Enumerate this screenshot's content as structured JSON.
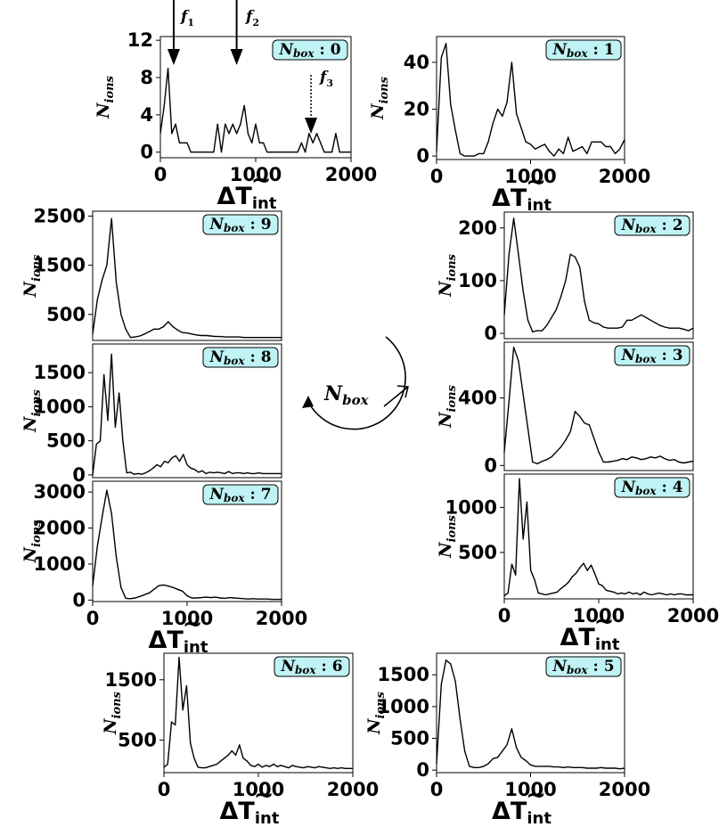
{
  "figure": {
    "y_label": "N",
    "y_label_sub": "ions",
    "x_label_main": "ΔT",
    "x_label_sub": "int",
    "x_label_tilde": "~",
    "cycle_label": "N",
    "cycle_label_sub": "box",
    "badge_color": "#bff3f5"
  },
  "arrows": {
    "f1": {
      "label": "f",
      "sub": "1",
      "x": 140
    },
    "f2": {
      "label": "f",
      "sub": "2",
      "x": 800
    },
    "f3": {
      "label": "f",
      "sub": "3",
      "x": 1580
    }
  },
  "chart_data": [
    {
      "id": "box0",
      "type": "line",
      "badge": "N",
      "badge_sub": "box",
      "badge_value": ": 0",
      "xlim": [
        0,
        2000
      ],
      "ylim": [
        -0.6,
        12.4
      ],
      "xticks": [
        0,
        1000,
        2000
      ],
      "yticks": [
        0,
        4,
        8,
        12
      ],
      "show_xlabel": true,
      "x": [
        0,
        40,
        80,
        120,
        160,
        200,
        240,
        280,
        320,
        360,
        400,
        440,
        480,
        520,
        560,
        600,
        640,
        680,
        720,
        760,
        800,
        840,
        880,
        920,
        960,
        1000,
        1040,
        1080,
        1120,
        1160,
        1200,
        1240,
        1280,
        1320,
        1360,
        1400,
        1440,
        1480,
        1520,
        1560,
        1600,
        1640,
        1680,
        1720,
        1760,
        1800,
        1840,
        1880,
        1920,
        1960,
        2000
      ],
      "y": [
        2,
        5,
        9,
        2,
        3,
        1,
        1,
        1,
        0,
        0,
        0,
        0,
        0,
        0,
        0,
        3,
        0,
        3,
        2,
        3,
        2,
        3,
        5,
        2,
        1,
        3,
        1,
        1,
        0,
        0,
        0,
        0,
        0,
        0,
        0,
        0,
        0,
        1,
        0,
        2,
        1,
        2,
        1,
        0,
        0,
        0,
        2,
        0,
        0,
        0,
        0
      ]
    },
    {
      "id": "box1",
      "type": "line",
      "badge": "N",
      "badge_sub": "box",
      "badge_value": ": 1",
      "xlim": [
        0,
        2000
      ],
      "ylim": [
        -1.5,
        51
      ],
      "xticks": [
        0,
        1000,
        2000
      ],
      "yticks": [
        0,
        20,
        40
      ],
      "show_xlabel": true,
      "x": [
        0,
        50,
        100,
        150,
        200,
        250,
        300,
        350,
        400,
        450,
        500,
        550,
        600,
        650,
        700,
        750,
        800,
        850,
        900,
        950,
        1000,
        1050,
        1100,
        1150,
        1200,
        1250,
        1300,
        1350,
        1400,
        1450,
        1500,
        1550,
        1600,
        1650,
        1700,
        1750,
        1800,
        1850,
        1900,
        1950,
        2000
      ],
      "y": [
        2,
        42,
        48,
        22,
        11,
        1,
        0,
        0,
        0,
        1,
        1,
        6,
        14,
        20,
        17,
        23,
        40,
        18,
        12,
        6,
        5,
        3,
        4,
        5,
        2,
        0,
        3,
        1,
        8,
        2,
        3,
        4,
        1,
        6,
        6,
        6,
        4,
        4,
        1,
        3,
        7
      ]
    },
    {
      "id": "box2",
      "type": "line",
      "badge": "N",
      "badge_sub": "box",
      "badge_value": ": 2",
      "xlim": [
        0,
        2000
      ],
      "ylim": [
        -10,
        230
      ],
      "xticks": [],
      "yticks": [
        0,
        100,
        200
      ],
      "show_xlabel": false,
      "x": [
        0,
        50,
        100,
        150,
        200,
        250,
        300,
        350,
        400,
        450,
        500,
        550,
        600,
        650,
        700,
        750,
        800,
        850,
        900,
        950,
        1000,
        1050,
        1100,
        1150,
        1200,
        1250,
        1300,
        1350,
        1400,
        1450,
        1500,
        1550,
        1600,
        1650,
        1700,
        1750,
        1800,
        1850,
        1900,
        1950,
        2000
      ],
      "y": [
        35,
        150,
        218,
        150,
        80,
        25,
        3,
        5,
        5,
        15,
        30,
        45,
        70,
        100,
        150,
        145,
        125,
        60,
        25,
        20,
        18,
        12,
        10,
        10,
        10,
        12,
        25,
        25,
        30,
        35,
        30,
        25,
        20,
        15,
        12,
        10,
        10,
        10,
        8,
        5,
        10
      ]
    },
    {
      "id": "box3",
      "type": "line",
      "badge": "N",
      "badge_sub": "box",
      "badge_value": ": 3",
      "xlim": [
        0,
        2000
      ],
      "ylim": [
        -30,
        730
      ],
      "xticks": [],
      "yticks": [
        0,
        400
      ],
      "show_xlabel": false,
      "x": [
        0,
        50,
        100,
        150,
        200,
        250,
        300,
        350,
        400,
        450,
        500,
        550,
        600,
        650,
        700,
        750,
        800,
        850,
        900,
        950,
        1000,
        1050,
        1100,
        1150,
        1200,
        1250,
        1300,
        1350,
        1400,
        1450,
        1500,
        1550,
        1600,
        1650,
        1700,
        1750,
        1800,
        1850,
        1900,
        1950,
        2000
      ],
      "y": [
        80,
        380,
        700,
        620,
        420,
        220,
        20,
        10,
        25,
        35,
        50,
        80,
        110,
        150,
        200,
        320,
        290,
        250,
        240,
        160,
        80,
        20,
        20,
        25,
        30,
        40,
        35,
        50,
        45,
        35,
        40,
        50,
        45,
        55,
        40,
        30,
        35,
        20,
        15,
        20,
        25
      ]
    },
    {
      "id": "box4",
      "type": "line",
      "badge": "N",
      "badge_sub": "box",
      "badge_value": ": 4",
      "xlim": [
        0,
        2000
      ],
      "ylim": [
        -15,
        1370
      ],
      "xticks": [
        0,
        1000,
        2000
      ],
      "yticks": [
        500,
        1000
      ],
      "show_xlabel": true,
      "x": [
        0,
        40,
        80,
        120,
        160,
        200,
        240,
        280,
        320,
        360,
        400,
        440,
        480,
        520,
        560,
        600,
        640,
        680,
        720,
        760,
        800,
        840,
        880,
        920,
        960,
        1000,
        1040,
        1080,
        1120,
        1160,
        1200,
        1240,
        1280,
        1320,
        1360,
        1400,
        1440,
        1480,
        1520,
        1560,
        1600,
        1640,
        1680,
        1720,
        1760,
        1800,
        1840,
        1880,
        1920,
        1960,
        2000
      ],
      "y": [
        20,
        50,
        370,
        250,
        1320,
        650,
        1060,
        300,
        200,
        50,
        40,
        30,
        40,
        50,
        60,
        100,
        130,
        170,
        230,
        270,
        330,
        380,
        300,
        360,
        260,
        150,
        130,
        80,
        70,
        60,
        40,
        50,
        40,
        60,
        40,
        50,
        30,
        60,
        40,
        30,
        40,
        50,
        40,
        30,
        40,
        30,
        40,
        40,
        30,
        30,
        30
      ]
    },
    {
      "id": "box5",
      "type": "line",
      "badge": "N",
      "badge_sub": "box",
      "badge_value": ": 5",
      "xlim": [
        0,
        2000
      ],
      "ylim": [
        -40,
        1840
      ],
      "xticks": [
        0,
        1000,
        2000
      ],
      "yticks": [
        0,
        500,
        1000,
        1500
      ],
      "show_xlabel": true,
      "x": [
        0,
        50,
        100,
        150,
        200,
        250,
        300,
        350,
        400,
        450,
        500,
        550,
        600,
        650,
        700,
        750,
        800,
        850,
        900,
        950,
        1000,
        1050,
        1100,
        1150,
        1200,
        1250,
        1300,
        1350,
        1400,
        1450,
        1500,
        1550,
        1600,
        1650,
        1700,
        1750,
        1800,
        1850,
        1900,
        1950,
        2000
      ],
      "y": [
        100,
        1350,
        1730,
        1670,
        1400,
        800,
        300,
        60,
        40,
        40,
        60,
        100,
        180,
        200,
        300,
        400,
        650,
        350,
        200,
        150,
        80,
        60,
        60,
        60,
        60,
        50,
        50,
        40,
        50,
        40,
        40,
        40,
        30,
        30,
        30,
        40,
        30,
        30,
        30,
        20,
        30
      ]
    },
    {
      "id": "box6",
      "type": "line",
      "badge": "N",
      "badge_sub": "box",
      "badge_value": ": 6",
      "xlim": [
        0,
        2000
      ],
      "ylim": [
        -40,
        1940
      ],
      "xticks": [
        0,
        1000,
        2000
      ],
      "yticks": [
        500,
        1500
      ],
      "show_xlabel": true,
      "x": [
        0,
        40,
        80,
        120,
        160,
        200,
        240,
        280,
        320,
        360,
        400,
        440,
        480,
        520,
        560,
        600,
        640,
        680,
        720,
        760,
        800,
        840,
        880,
        920,
        960,
        1000,
        1040,
        1080,
        1120,
        1160,
        1200,
        1240,
        1280,
        1320,
        1360,
        1400,
        1440,
        1480,
        1520,
        1560,
        1600,
        1640,
        1680,
        1720,
        1760,
        1800,
        1840,
        1880,
        1920,
        1960,
        2000
      ],
      "y": [
        50,
        100,
        800,
        750,
        1870,
        1000,
        1400,
        450,
        200,
        50,
        40,
        40,
        60,
        80,
        100,
        150,
        200,
        250,
        320,
        250,
        420,
        200,
        150,
        80,
        60,
        100,
        50,
        80,
        60,
        100,
        60,
        80,
        60,
        40,
        80,
        60,
        50,
        40,
        60,
        50,
        40,
        60,
        50,
        40,
        30,
        40,
        30,
        40,
        30,
        30,
        30
      ]
    },
    {
      "id": "box7",
      "type": "line",
      "badge": "N",
      "badge_sub": "box",
      "badge_value": ": 7",
      "xlim": [
        0,
        2000
      ],
      "ylim": [
        -40,
        3300
      ],
      "xticks": [
        0,
        1000,
        2000
      ],
      "yticks": [
        0,
        1000,
        2000,
        3000
      ],
      "show_xlabel": true,
      "x": [
        0,
        50,
        100,
        150,
        200,
        250,
        300,
        350,
        400,
        450,
        500,
        550,
        600,
        650,
        700,
        750,
        800,
        850,
        900,
        950,
        1000,
        1050,
        1100,
        1150,
        1200,
        1250,
        1300,
        1350,
        1400,
        1450,
        1500,
        1550,
        1600,
        1650,
        1700,
        1750,
        1800,
        1850,
        1900,
        1950,
        2000
      ],
      "y": [
        400,
        1500,
        2300,
        3050,
        2400,
        1200,
        350,
        50,
        40,
        60,
        100,
        150,
        200,
        300,
        400,
        420,
        390,
        350,
        300,
        250,
        120,
        60,
        60,
        70,
        80,
        70,
        80,
        60,
        50,
        70,
        60,
        50,
        40,
        30,
        40,
        30,
        30,
        30,
        20,
        20,
        20
      ]
    },
    {
      "id": "box8",
      "type": "line",
      "badge": "N",
      "badge_sub": "box",
      "badge_value": ": 8",
      "xlim": [
        0,
        2000
      ],
      "ylim": [
        -40,
        1920
      ],
      "xticks": [],
      "yticks": [
        0,
        500,
        1000,
        1500
      ],
      "show_xlabel": false,
      "x": [
        0,
        40,
        80,
        120,
        160,
        200,
        240,
        280,
        320,
        360,
        400,
        440,
        480,
        520,
        560,
        600,
        640,
        680,
        720,
        760,
        800,
        840,
        880,
        920,
        960,
        1000,
        1040,
        1080,
        1120,
        1160,
        1200,
        1240,
        1280,
        1320,
        1360,
        1400,
        1440,
        1480,
        1520,
        1560,
        1600,
        1640,
        1680,
        1720,
        1760,
        1800,
        1840,
        1880,
        1920,
        1960,
        2000
      ],
      "y": [
        0,
        450,
        500,
        1470,
        800,
        1770,
        700,
        1200,
        500,
        30,
        40,
        10,
        20,
        10,
        30,
        60,
        100,
        150,
        120,
        200,
        180,
        250,
        280,
        200,
        300,
        150,
        100,
        80,
        40,
        60,
        20,
        40,
        30,
        40,
        30,
        20,
        50,
        20,
        30,
        30,
        20,
        30,
        20,
        20,
        30,
        20,
        20,
        20,
        20,
        20,
        20
      ]
    },
    {
      "id": "box9",
      "type": "line",
      "badge": "N",
      "badge_sub": "box",
      "badge_value": ": 9",
      "xlim": [
        0,
        2000
      ],
      "ylim": [
        -30,
        2600
      ],
      "xticks": [],
      "yticks": [
        500,
        1500,
        2500
      ],
      "show_xlabel": false,
      "x": [
        0,
        50,
        100,
        150,
        200,
        250,
        300,
        350,
        400,
        450,
        500,
        550,
        600,
        650,
        700,
        750,
        800,
        850,
        900,
        950,
        1000,
        1050,
        1100,
        1150,
        1200,
        1250,
        1300,
        1350,
        1400,
        1450,
        1500,
        1550,
        1600,
        1650,
        1700,
        1750,
        1800,
        1850,
        1900,
        1950,
        2000
      ],
      "y": [
        100,
        800,
        1200,
        1500,
        2450,
        1150,
        500,
        200,
        30,
        40,
        60,
        100,
        150,
        200,
        200,
        250,
        350,
        250,
        180,
        130,
        120,
        100,
        80,
        70,
        70,
        60,
        50,
        50,
        40,
        40,
        40,
        40,
        30,
        30,
        30,
        30,
        30,
        30,
        30,
        30,
        30
      ]
    }
  ]
}
